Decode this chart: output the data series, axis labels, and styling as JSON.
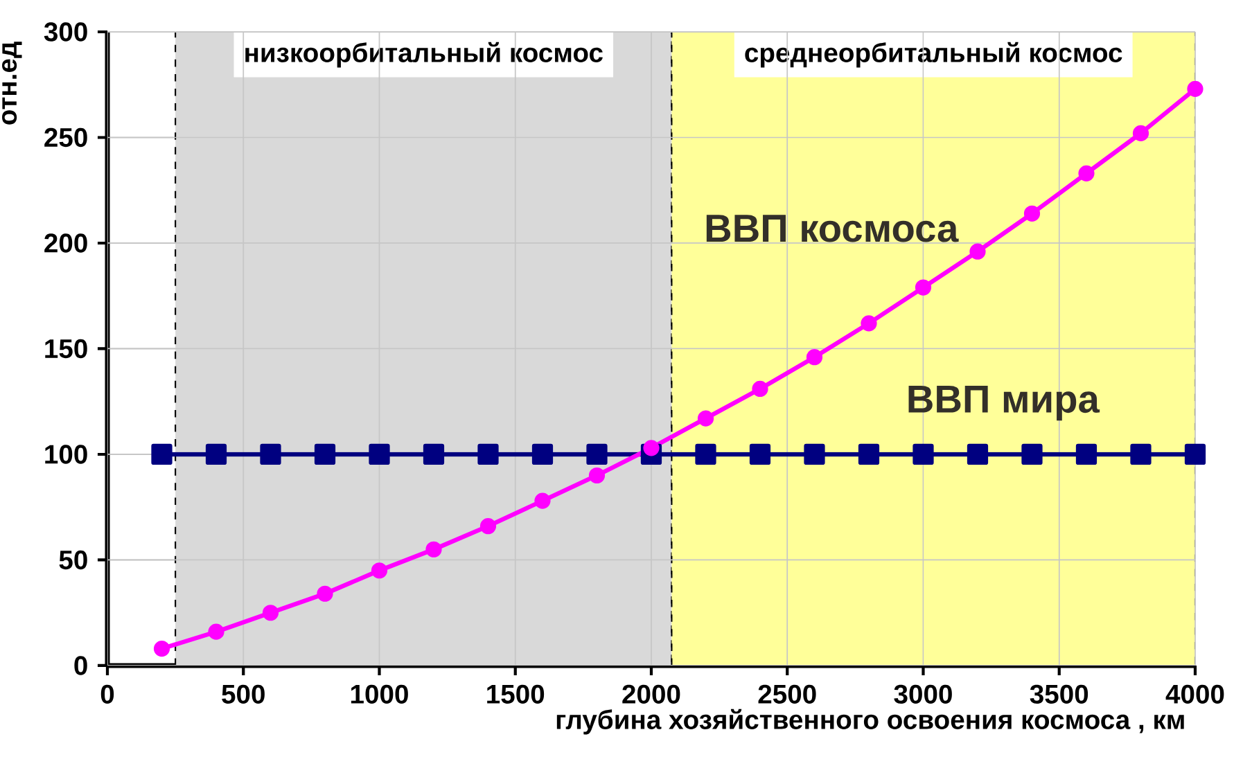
{
  "chart_data": {
    "type": "line",
    "xlabel": "глубина хозяйственного освоения космоса , км",
    "ylabel": "отн.ед",
    "x": [
      200,
      400,
      600,
      800,
      1000,
      1200,
      1400,
      1600,
      1800,
      2000,
      2200,
      2400,
      2600,
      2800,
      3000,
      3200,
      3400,
      3600,
      3800,
      4000
    ],
    "series": [
      {
        "name": "ВВП мира",
        "color": "#000080",
        "marker": "square",
        "values": [
          100,
          100,
          100,
          100,
          100,
          100,
          100,
          100,
          100,
          100,
          100,
          100,
          100,
          100,
          100,
          100,
          100,
          100,
          100,
          100
        ]
      },
      {
        "name": "ВВП космоса",
        "color": "#ff00ff",
        "marker": "circle",
        "values": [
          8,
          16,
          25,
          34,
          45,
          55,
          66,
          78,
          90,
          103,
          117,
          131,
          146,
          162,
          179,
          196,
          214,
          233,
          252,
          273
        ]
      }
    ],
    "bands": [
      {
        "axis": "x",
        "from": 250,
        "to": 2075,
        "label": "низкоорбитальный  космос",
        "color": "#d9d9d9"
      },
      {
        "axis": "x",
        "from": 2075,
        "to": 4000,
        "label": "среднеорбитальный  космос",
        "color": "#ffff99"
      }
    ],
    "xlim": [
      0,
      4000
    ],
    "ylim": [
      0,
      300
    ],
    "xticks": [
      0,
      500,
      1000,
      1500,
      2000,
      2500,
      3000,
      3500,
      4000
    ],
    "yticks": [
      0,
      50,
      100,
      150,
      200,
      250,
      300
    ],
    "grid": true
  }
}
